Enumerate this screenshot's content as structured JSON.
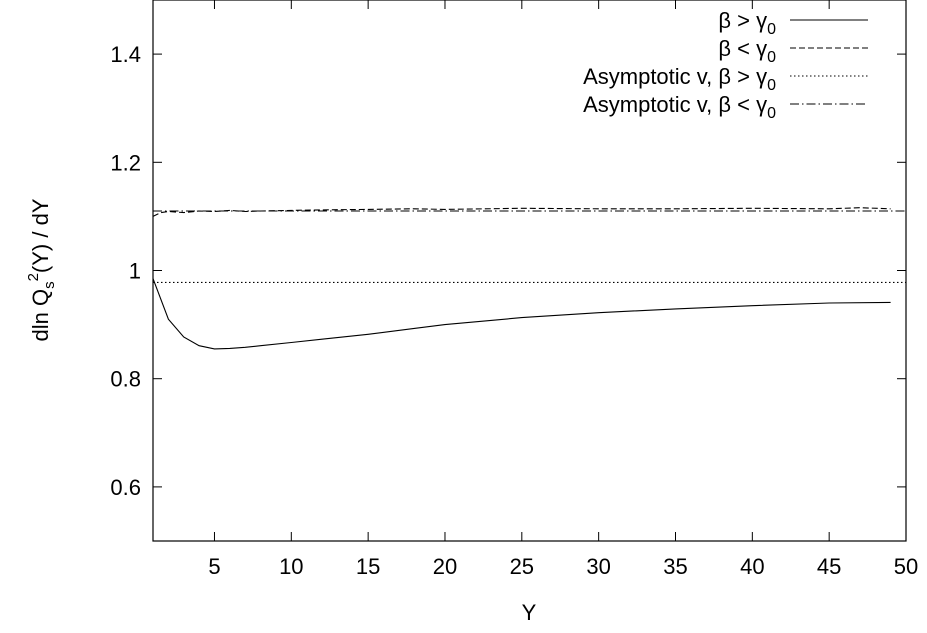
{
  "chart_data": {
    "type": "line",
    "xlabel": "Y",
    "ylabel": "dln Q_s^2(Y) / dY",
    "xlim": [
      1,
      50
    ],
    "ylim": [
      0.5,
      1.5
    ],
    "xticks": [
      5,
      10,
      15,
      20,
      25,
      30,
      35,
      40,
      45,
      50
    ],
    "xtick_labels": [
      "5",
      "10",
      "15",
      "20",
      "25",
      "30",
      "35",
      "40",
      "45",
      "50"
    ],
    "yticks": [
      0.6,
      0.8,
      1.0,
      1.2,
      1.4
    ],
    "ytick_labels": [
      "0.6",
      "0.8",
      "1",
      "1.2",
      "1.4"
    ],
    "grid": false,
    "legend_position": "top-right",
    "series": [
      {
        "name": "β > γ0",
        "style": "solid",
        "x": [
          1,
          2,
          3,
          4,
          5,
          6,
          7,
          8,
          10,
          12,
          15,
          18,
          20,
          25,
          30,
          35,
          40,
          45,
          49
        ],
        "y": [
          0.985,
          0.91,
          0.877,
          0.861,
          0.855,
          0.856,
          0.858,
          0.861,
          0.867,
          0.873,
          0.882,
          0.893,
          0.9,
          0.913,
          0.922,
          0.929,
          0.935,
          0.94,
          0.941
        ]
      },
      {
        "name": "β < γ0",
        "style": "dashed",
        "x": [
          1,
          1.5,
          2,
          3,
          4,
          5,
          6,
          7,
          8,
          10,
          12,
          15,
          18,
          20,
          25,
          30,
          35,
          40,
          45,
          47,
          49
        ],
        "y": [
          1.1,
          1.107,
          1.109,
          1.107,
          1.11,
          1.109,
          1.111,
          1.109,
          1.11,
          1.111,
          1.112,
          1.113,
          1.114,
          1.113,
          1.115,
          1.114,
          1.114,
          1.115,
          1.114,
          1.116,
          1.114
        ]
      },
      {
        "name": "Asymptotic v, β > γ0",
        "style": "dotted",
        "x": [
          1,
          50
        ],
        "y": [
          0.978,
          0.978
        ]
      },
      {
        "name": "Asymptotic v, β < γ0",
        "style": "dashdot",
        "x": [
          1,
          50
        ],
        "y": [
          1.11,
          1.11
        ]
      }
    ]
  }
}
